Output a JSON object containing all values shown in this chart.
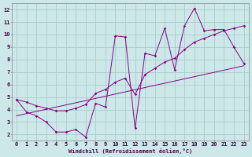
{
  "xlabel": "Windchill (Refroidissement éolien,°C)",
  "bg_color": "#cce8e8",
  "grid_color": "#aacccc",
  "line_color": "#880088",
  "xlim": [
    -0.5,
    23.5
  ],
  "ylim": [
    1.5,
    12.5
  ],
  "xticks": [
    0,
    1,
    2,
    3,
    4,
    5,
    6,
    7,
    8,
    9,
    10,
    11,
    12,
    13,
    14,
    15,
    16,
    17,
    18,
    19,
    20,
    21,
    22,
    23
  ],
  "yticks": [
    2,
    3,
    4,
    5,
    6,
    7,
    8,
    9,
    10,
    11,
    12
  ],
  "line1_x": [
    0,
    1,
    2,
    3,
    4,
    5,
    6,
    7,
    8,
    9,
    10,
    11,
    12,
    13,
    14,
    15,
    16,
    17,
    18,
    19,
    20,
    21,
    22,
    23
  ],
  "line1_y": [
    4.8,
    3.8,
    3.5,
    3.0,
    2.2,
    2.2,
    2.4,
    1.8,
    4.5,
    4.2,
    9.9,
    9.8,
    2.5,
    8.5,
    8.3,
    10.5,
    7.2,
    10.7,
    12.1,
    10.3,
    10.4,
    10.4,
    9.0,
    7.7
  ],
  "line2_x": [
    0,
    1,
    2,
    3,
    4,
    5,
    6,
    7,
    8,
    9,
    10,
    11,
    12,
    13,
    14,
    15,
    16,
    17,
    18,
    19,
    20,
    21,
    22,
    23
  ],
  "line2_y": [
    4.8,
    4.6,
    4.3,
    4.1,
    3.9,
    3.9,
    4.1,
    4.4,
    5.3,
    5.6,
    6.2,
    6.5,
    5.2,
    6.8,
    7.3,
    7.8,
    8.1,
    8.8,
    9.4,
    9.7,
    10.0,
    10.3,
    10.5,
    10.7
  ],
  "line3_x": [
    0,
    23
  ],
  "line3_y": [
    3.5,
    7.5
  ],
  "xlabel_fontsize": 5.0,
  "tick_fontsize": 5.0
}
